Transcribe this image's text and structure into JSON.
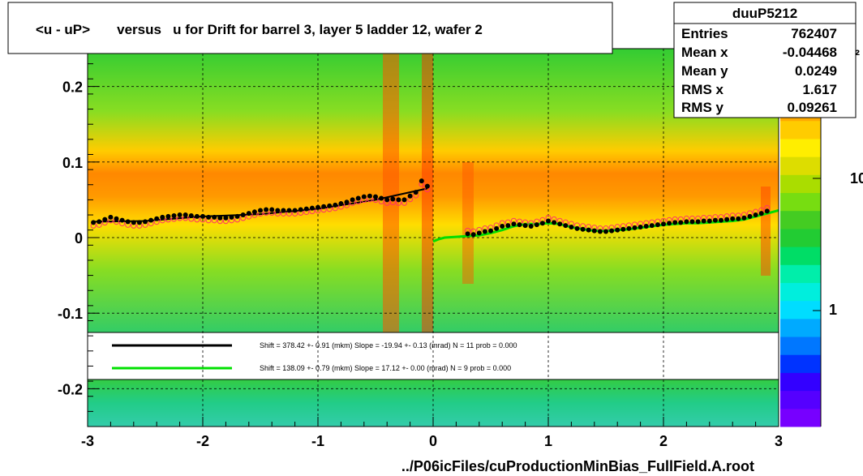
{
  "chart_data": {
    "type": "heatmap",
    "title": "<u - uP>       versus   u for Drift for barrel 3, layer 5 ladder 12, wafer 2",
    "xlabel": "../P06icFiles/cuProductionMinBias_FullField.A.root",
    "ylabel": "",
    "xlim": [
      -3,
      3
    ],
    "ylim": [
      -0.25,
      0.25
    ],
    "x_ticks": [
      "-3",
      "-2",
      "-1",
      "0",
      "1",
      "2",
      "3"
    ],
    "y_ticks": [
      "-0.2",
      "-0.1",
      "0",
      "0.1",
      "0.2"
    ],
    "z_scale": "log",
    "z_ticks": [
      "1",
      "10"
    ],
    "z_tick_clipped": "²",
    "grid": true,
    "stats": {
      "name": "duuP5212",
      "rows": [
        {
          "label": "Entries",
          "value": "762407"
        },
        {
          "label": "Mean x",
          "value": "-0.04468"
        },
        {
          "label": "Mean y",
          "value": "0.0249"
        },
        {
          "label": "RMS x",
          "value": "1.617"
        },
        {
          "label": "RMS y",
          "value": "0.09261"
        }
      ]
    },
    "fit_legend": [
      {
        "color": "#000000",
        "text": "Shift =   378.42 +- 0.91 (mkm) Slope =   -19.94 +- 0.13 (mrad)  N = 11 prob = 0.000"
      },
      {
        "color": "#00e000",
        "text": "Shift =   138.09 +- 0.79 (mkm) Slope =    17.12 +- 0.00 (mrad)  N = 9 prob = 0.000"
      }
    ],
    "profile_black": {
      "x": [
        -2.95,
        -2.9,
        -2.85,
        -2.8,
        -2.75,
        -2.7,
        -2.65,
        -2.6,
        -2.55,
        -2.5,
        -2.45,
        -2.4,
        -2.35,
        -2.3,
        -2.25,
        -2.2,
        -2.15,
        -2.1,
        -2.05,
        -2.0,
        -1.95,
        -1.9,
        -1.85,
        -1.8,
        -1.75,
        -1.7,
        -1.65,
        -1.6,
        -1.55,
        -1.5,
        -1.45,
        -1.4,
        -1.35,
        -1.3,
        -1.25,
        -1.2,
        -1.15,
        -1.1,
        -1.05,
        -1.0,
        -0.95,
        -0.9,
        -0.85,
        -0.8,
        -0.75,
        -0.7,
        -0.65,
        -0.6,
        -0.55,
        -0.5,
        -0.45,
        -0.4,
        -0.35,
        -0.3,
        -0.25,
        -0.2,
        -0.15,
        -0.1,
        -0.05
      ],
      "y": [
        0.02,
        0.021,
        0.024,
        0.027,
        0.025,
        0.023,
        0.021,
        0.02,
        0.02,
        0.021,
        0.023,
        0.025,
        0.027,
        0.028,
        0.029,
        0.03,
        0.03,
        0.029,
        0.028,
        0.028,
        0.027,
        0.027,
        0.026,
        0.026,
        0.027,
        0.028,
        0.03,
        0.032,
        0.034,
        0.036,
        0.037,
        0.037,
        0.036,
        0.036,
        0.036,
        0.036,
        0.037,
        0.038,
        0.039,
        0.04,
        0.041,
        0.042,
        0.043,
        0.045,
        0.047,
        0.05,
        0.052,
        0.054,
        0.055,
        0.054,
        0.052,
        0.05,
        0.051,
        0.05,
        0.05,
        0.055,
        0.06,
        0.075,
        0.068
      ]
    },
    "profile_black_right": {
      "x": [
        0.3,
        0.35,
        0.4,
        0.45,
        0.5,
        0.55,
        0.6,
        0.65,
        0.7,
        0.75,
        0.8,
        0.85,
        0.9,
        0.95,
        1.0,
        1.05,
        1.1,
        1.15,
        1.2,
        1.25,
        1.3,
        1.35,
        1.4,
        1.45,
        1.5,
        1.55,
        1.6,
        1.65,
        1.7,
        1.75,
        1.8,
        1.85,
        1.9,
        1.95,
        2.0,
        2.05,
        2.1,
        2.15,
        2.2,
        2.25,
        2.3,
        2.35,
        2.4,
        2.45,
        2.5,
        2.55,
        2.6,
        2.65,
        2.7,
        2.75,
        2.8,
        2.85,
        2.9
      ],
      "y": [
        0.005,
        0.004,
        0.006,
        0.008,
        0.009,
        0.012,
        0.015,
        0.016,
        0.018,
        0.017,
        0.016,
        0.015,
        0.017,
        0.019,
        0.022,
        0.02,
        0.018,
        0.016,
        0.014,
        0.012,
        0.011,
        0.01,
        0.009,
        0.008,
        0.008,
        0.009,
        0.01,
        0.011,
        0.012,
        0.013,
        0.014,
        0.015,
        0.016,
        0.017,
        0.018,
        0.019,
        0.02,
        0.02,
        0.021,
        0.021,
        0.021,
        0.022,
        0.022,
        0.023,
        0.023,
        0.024,
        0.025,
        0.025,
        0.026,
        0.028,
        0.03,
        0.032,
        0.035
      ]
    },
    "profile_green": {
      "x": [
        0.0,
        0.05,
        0.1,
        0.2,
        0.3,
        0.4,
        0.5,
        0.6,
        0.7,
        0.8,
        0.9,
        1.0,
        1.1,
        1.2,
        1.3,
        1.4,
        1.5,
        1.6,
        1.7,
        1.8,
        1.9,
        2.0,
        2.1,
        2.2,
        2.3,
        2.4,
        2.5,
        2.6,
        2.7,
        2.8,
        2.9,
        3.0
      ],
      "y": [
        -0.005,
        -0.002,
        0.0,
        0.001,
        0.002,
        0.003,
        0.006,
        0.01,
        0.015,
        0.018,
        0.018,
        0.019,
        0.018,
        0.014,
        0.011,
        0.009,
        0.009,
        0.01,
        0.011,
        0.013,
        0.015,
        0.017,
        0.018,
        0.019,
        0.019,
        0.02,
        0.021,
        0.022,
        0.024,
        0.028,
        0.032,
        0.036
      ]
    },
    "fit_black": {
      "x": [
        -2.95,
        -2.5,
        -2.0,
        -1.5,
        -1.0,
        -0.5,
        -0.05
      ],
      "y": [
        0.021,
        0.022,
        0.028,
        0.031,
        0.038,
        0.05,
        0.065
      ]
    }
  }
}
